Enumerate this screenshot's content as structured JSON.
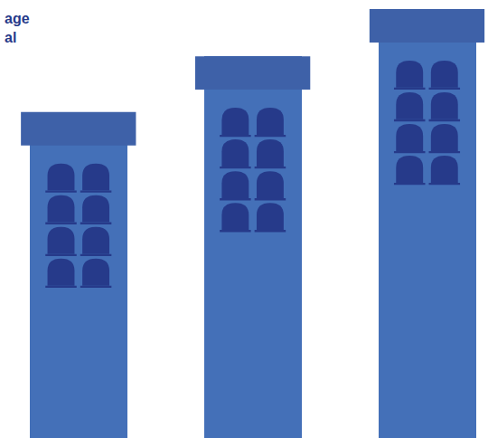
{
  "chart_data": {
    "type": "bar",
    "title": "age\nal",
    "categories": [
      null,
      null,
      null
    ],
    "values": [
      76,
      89,
      100
    ],
    "color": "#4470b8",
    "ylim": [
      0,
      100
    ],
    "grid": false,
    "tick_labels": false
  }
}
